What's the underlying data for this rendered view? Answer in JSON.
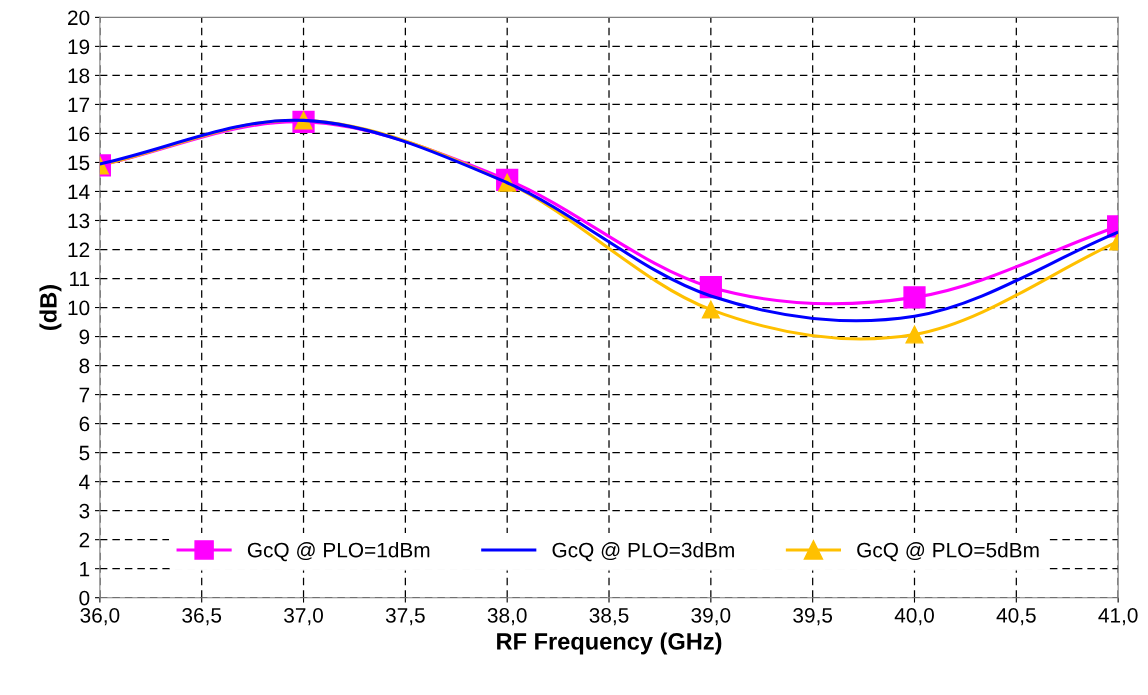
{
  "chart_data": {
    "type": "line",
    "xlabel": "RF Frequency (GHz)",
    "ylabel": "(dB)",
    "x": [
      36,
      37,
      38,
      39,
      40,
      41
    ],
    "series": [
      {
        "name": "GcQ @ PLO=1dBm",
        "color": "#ff00ff",
        "marker": "square",
        "values": [
          14.9,
          16.4,
          14.4,
          10.7,
          10.35,
          12.8
        ]
      },
      {
        "name": "GcQ @ PLO=3dBm",
        "color": "#0000ff",
        "marker": "none",
        "values": [
          14.95,
          16.45,
          14.3,
          10.4,
          9.7,
          12.6
        ]
      },
      {
        "name": "GcQ @ PLO=5dBm",
        "color": "#ffc000",
        "marker": "triangle",
        "values": [
          14.9,
          16.45,
          14.3,
          9.93,
          9.07,
          12.28
        ]
      }
    ],
    "xlim": [
      36,
      41
    ],
    "ylim": [
      0,
      20
    ],
    "xticks": [
      {
        "value": 36,
        "label": "36,0"
      },
      {
        "value": 36.5,
        "label": "36,5"
      },
      {
        "value": 37,
        "label": "37,0"
      },
      {
        "value": 37.5,
        "label": "37,5"
      },
      {
        "value": 38,
        "label": "38,0"
      },
      {
        "value": 38.5,
        "label": "38,5"
      },
      {
        "value": 39,
        "label": "39,0"
      },
      {
        "value": 39.5,
        "label": "39,5"
      },
      {
        "value": 40,
        "label": "40,0"
      },
      {
        "value": 40.5,
        "label": "40,5"
      },
      {
        "value": 41,
        "label": "41,0"
      }
    ],
    "yticks": [
      0,
      1,
      2,
      3,
      4,
      5,
      6,
      7,
      8,
      9,
      10,
      11,
      12,
      13,
      14,
      15,
      16,
      17,
      18,
      19,
      20
    ],
    "grid": true,
    "legend": "bottom",
    "line_style": "solid"
  }
}
